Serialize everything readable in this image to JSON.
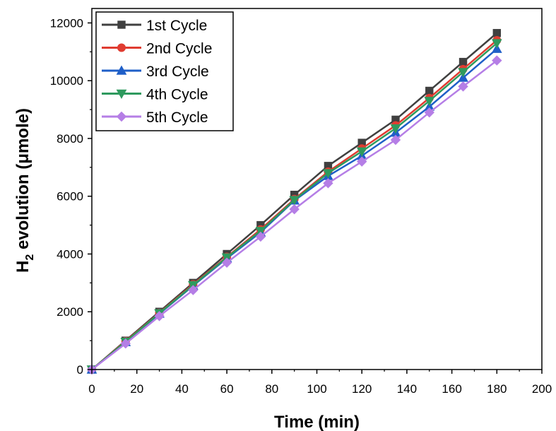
{
  "chart_data": {
    "type": "line",
    "xlabel": "Time (min)",
    "ylabel_main": "H",
    "ylabel_sub": "2",
    "ylabel_rest": " evolution (μmole)",
    "xlim": [
      0,
      200
    ],
    "ylim": [
      0,
      12500
    ],
    "xticks": [
      0,
      20,
      40,
      60,
      80,
      100,
      120,
      140,
      160,
      180,
      200
    ],
    "yticks": [
      0,
      2000,
      4000,
      6000,
      8000,
      10000,
      12000
    ],
    "grid": false,
    "legend_position": "top-left",
    "x": [
      0,
      15,
      30,
      45,
      60,
      75,
      90,
      105,
      120,
      135,
      150,
      165,
      180
    ],
    "series": [
      {
        "name": "1st Cycle",
        "color": "#404040",
        "marker": "square",
        "values": [
          0,
          1000,
          2000,
          3000,
          4000,
          5000,
          6050,
          7050,
          7850,
          8650,
          9650,
          10650,
          11650
        ]
      },
      {
        "name": "2nd Cycle",
        "color": "#e03c31",
        "marker": "circle",
        "values": [
          0,
          980,
          1960,
          2950,
          3900,
          4850,
          5900,
          6850,
          7650,
          8450,
          9400,
          10400,
          11400
        ]
      },
      {
        "name": "3rd Cycle",
        "color": "#1f5fc8",
        "marker": "triangle-up",
        "values": [
          0,
          950,
          1930,
          2900,
          3850,
          4750,
          5850,
          6700,
          7400,
          8200,
          9100,
          10100,
          11100
        ]
      },
      {
        "name": "4th Cycle",
        "color": "#2e9a5e",
        "marker": "triangle-down",
        "values": [
          0,
          960,
          1950,
          2920,
          3880,
          4800,
          5870,
          6800,
          7550,
          8350,
          9300,
          10300,
          11300
        ]
      },
      {
        "name": "5th Cycle",
        "color": "#b57ee6",
        "marker": "diamond",
        "values": [
          0,
          900,
          1850,
          2750,
          3700,
          4600,
          5550,
          6450,
          7200,
          7950,
          8900,
          9800,
          10700
        ]
      }
    ]
  }
}
